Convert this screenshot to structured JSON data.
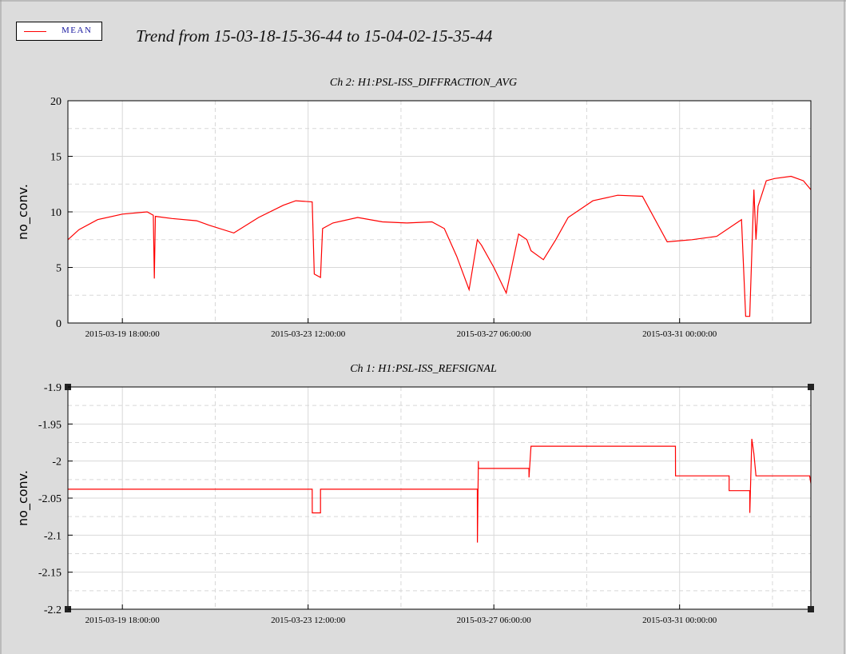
{
  "header": {
    "title": "Trend from 15-03-18-15-36-44 to 15-04-02-15-35-44",
    "legend_label": "MEAN",
    "legend_color": "#ff0000"
  },
  "chart_data": [
    {
      "type": "line",
      "title": "Ch 2: H1:PSL-ISS_DIFFRACTION_AVG",
      "xlabel": "",
      "ylabel": "no_conv.",
      "ylim": [
        0,
        20
      ],
      "yticks": [
        "0",
        "5",
        "10",
        "15",
        "20"
      ],
      "xtick_labels": [
        "2015-03-19 18:00:00",
        "2015-03-23 12:00:00",
        "2015-03-27 06:00:00",
        "2015-03-31 00:00:00"
      ],
      "xlim": [
        "2015-03-18 15:36:44",
        "2015-04-02 15:35:44"
      ],
      "grid": true,
      "series": [
        {
          "color": "#ff0000",
          "x": [
            "2015-03-18 15:36",
            "2015-03-18 21:00",
            "2015-03-19 06:00",
            "2015-03-19 18:00",
            "2015-03-20 06:00",
            "2015-03-20 09:00",
            "2015-03-20 09:30",
            "2015-03-20 10:00",
            "2015-03-20 18:00",
            "2015-03-21 06:00",
            "2015-03-21 12:00",
            "2015-03-22 00:00",
            "2015-03-22 12:00",
            "2015-03-23 00:00",
            "2015-03-23 06:00",
            "2015-03-23 14:00",
            "2015-03-23 15:00",
            "2015-03-23 18:00",
            "2015-03-23 19:00",
            "2015-03-24 00:00",
            "2015-03-24 12:00",
            "2015-03-25 00:00",
            "2015-03-25 12:00",
            "2015-03-26 00:00",
            "2015-03-26 06:00",
            "2015-03-26 12:00",
            "2015-03-26 18:00",
            "2015-03-26 22:00",
            "2015-03-27 00:00",
            "2015-03-27 06:00",
            "2015-03-27 12:00",
            "2015-03-27 18:00",
            "2015-03-27 22:00",
            "2015-03-28 00:00",
            "2015-03-28 06:00",
            "2015-03-28 12:00",
            "2015-03-28 18:00",
            "2015-03-29 06:00",
            "2015-03-29 18:00",
            "2015-03-30 06:00",
            "2015-03-30 18:00",
            "2015-03-31 00:00",
            "2015-03-31 06:00",
            "2015-03-31 18:00",
            "2015-04-01 06:00",
            "2015-04-01 08:00",
            "2015-04-01 10:00",
            "2015-04-01 12:00",
            "2015-04-01 13:00",
            "2015-04-01 14:00",
            "2015-04-01 18:00",
            "2015-04-01 22:00",
            "2015-04-02 06:00",
            "2015-04-02 12:00",
            "2015-04-02 15:35"
          ],
          "y": [
            7.5,
            8.4,
            9.3,
            9.8,
            10.0,
            9.7,
            4.0,
            9.6,
            9.4,
            9.2,
            8.8,
            8.1,
            9.5,
            10.6,
            11.0,
            10.9,
            4.4,
            4.1,
            8.5,
            9.0,
            9.5,
            9.1,
            9.0,
            9.1,
            8.5,
            6.0,
            3.0,
            7.5,
            7.0,
            5.0,
            2.7,
            8.0,
            7.5,
            6.5,
            5.7,
            7.5,
            9.5,
            11.0,
            11.5,
            11.4,
            7.3,
            7.4,
            7.5,
            7.8,
            9.3,
            0.6,
            0.6,
            12.0,
            7.5,
            10.5,
            12.8,
            13.0,
            13.2,
            12.8,
            12.0
          ]
        }
      ]
    },
    {
      "type": "line",
      "title": "Ch 1: H1:PSL-ISS_REFSIGNAL",
      "xlabel": "",
      "ylabel": "no_conv.",
      "ylim": [
        -2.2,
        -1.9
      ],
      "yticks": [
        "-2.2",
        "-2.15",
        "-2.1",
        "-2.05",
        "-2",
        "-1.95",
        "-1.9"
      ],
      "xtick_labels": [
        "2015-03-19 18:00:00",
        "2015-03-23 12:00:00",
        "2015-03-27 06:00:00",
        "2015-03-31 00:00:00"
      ],
      "xlim": [
        "2015-03-18 15:36:44",
        "2015-04-02 15:35:44"
      ],
      "grid": true,
      "series": [
        {
          "color": "#ff0000",
          "x": [
            "2015-03-18 15:36",
            "2015-03-23 14:00",
            "2015-03-23 14:01",
            "2015-03-23 18:00",
            "2015-03-23 18:01",
            "2015-03-26 22:00",
            "2015-03-26 22:01",
            "2015-03-26 22:30",
            "2015-03-26 22:31",
            "2015-03-27 23:00",
            "2015-03-27 23:01",
            "2015-03-28 00:00",
            "2015-03-28 00:01",
            "2015-03-30 22:00",
            "2015-03-30 22:01",
            "2015-04-01 00:00",
            "2015-04-01 00:01",
            "2015-04-01 10:00",
            "2015-04-01 10:01",
            "2015-04-01 11:00",
            "2015-04-01 12:00",
            "2015-04-01 13:00",
            "2015-04-01 14:00",
            "2015-04-02 15:00",
            "2015-04-02 15:35"
          ],
          "y": [
            -2.038,
            -2.038,
            -2.07,
            -2.07,
            -2.038,
            -2.038,
            -2.11,
            -2.0,
            -2.01,
            -2.01,
            -2.022,
            -1.98,
            -1.98,
            -1.98,
            -2.02,
            -2.02,
            -2.04,
            -2.04,
            -2.07,
            -1.97,
            -1.99,
            -2.02,
            -2.02,
            -2.02,
            -2.03
          ]
        }
      ]
    }
  ]
}
